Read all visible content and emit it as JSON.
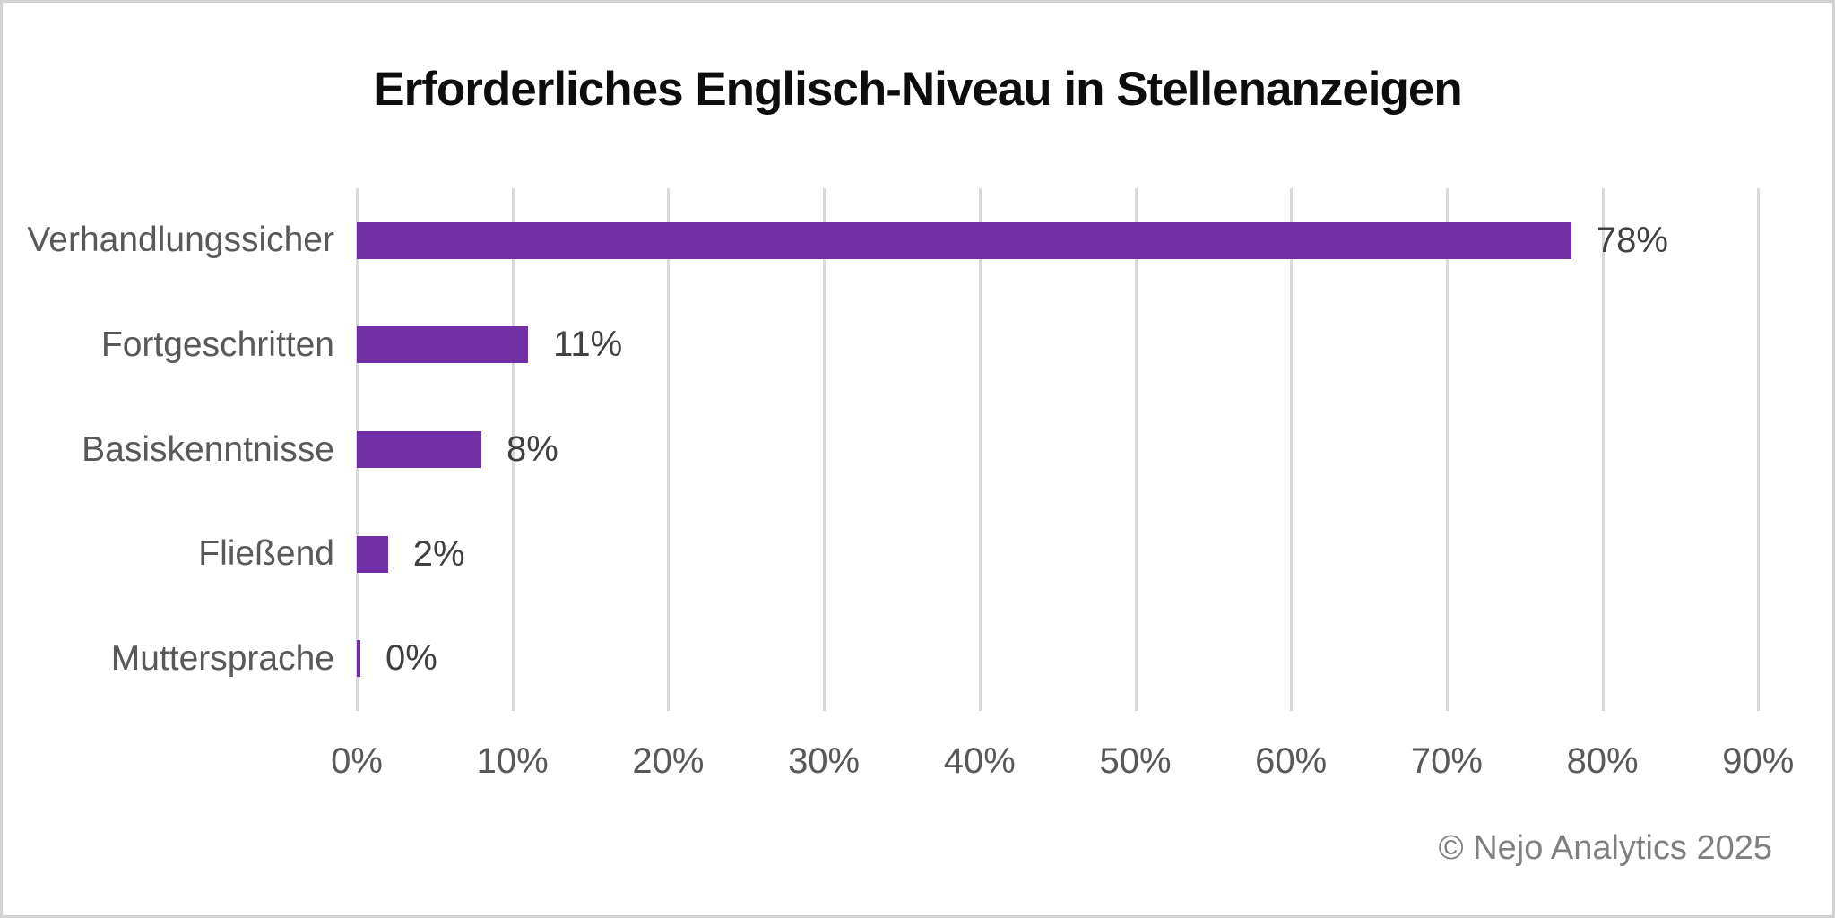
{
  "title": "Erforderliches Englisch-Niveau in Stellenanzeigen",
  "footer": "© Nejo Analytics 2025",
  "chart_data": {
    "type": "bar",
    "orientation": "horizontal",
    "title": "Erforderliches Englisch-Niveau in Stellenanzeigen",
    "categories": [
      "Verhandlungssicher",
      "Fortgeschritten",
      "Basiskenntnisse",
      "Fließend",
      "Muttersprache"
    ],
    "values": [
      78,
      11,
      8,
      2,
      0
    ],
    "value_labels": [
      "78%",
      "11%",
      "8%",
      "2%",
      "0%"
    ],
    "x_tick_labels": [
      "0%",
      "10%",
      "20%",
      "30%",
      "40%",
      "50%",
      "60%",
      "70%",
      "80%",
      "90%"
    ],
    "x_tick_values": [
      0,
      10,
      20,
      30,
      40,
      50,
      60,
      70,
      80,
      90
    ],
    "xlim": [
      0,
      90
    ],
    "xlabel": "",
    "ylabel": "",
    "grid": true,
    "legend": false,
    "annotation": "© Nejo Analytics 2025"
  },
  "colors": {
    "bar": "#7130A5",
    "gridline": "#D9D9D9",
    "category_label": "#595959",
    "tick_label": "#595959",
    "value_label": "#404040",
    "title": "#0D0D0D",
    "footer": "#808080",
    "background": "#FFFFFF",
    "frame": "#D2D2D2"
  }
}
